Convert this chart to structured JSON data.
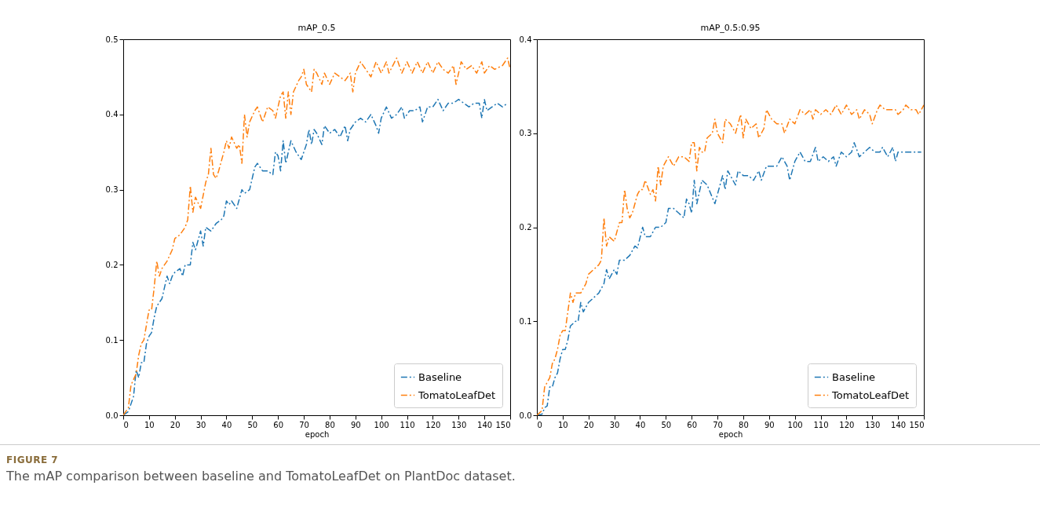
{
  "chart_data": [
    {
      "type": "line",
      "title": "mAP_0.5",
      "xlabel": "epoch",
      "xlim": [
        0,
        150
      ],
      "xticks": [
        0,
        10,
        20,
        30,
        40,
        50,
        60,
        70,
        80,
        90,
        100,
        110,
        120,
        130,
        140,
        150
      ],
      "ylim": [
        0,
        0.5
      ],
      "yticks": [
        {
          "value": 0,
          "label": "0.0"
        },
        0.1,
        0.2,
        0.3,
        0.4,
        0.5
      ],
      "legend": "bottom right",
      "line_style": "dashdot",
      "grid": false,
      "annotations": [
        "FIGURE 7",
        "The mAP comparison between baseline and TomatoLeafDet on PlantDoc dataset."
      ],
      "series": [
        {
          "name": "Baseline",
          "color": "#1f77b4",
          "x": [
            0,
            2,
            3,
            4,
            5,
            6,
            7,
            8,
            9,
            10,
            11,
            12,
            13,
            15,
            17,
            18,
            19,
            20,
            22,
            23,
            24,
            26,
            27,
            28,
            30,
            31,
            32,
            34,
            36,
            38,
            39,
            40,
            41,
            42,
            44,
            46,
            47,
            49,
            51,
            52,
            54,
            56,
            58,
            59,
            60,
            61,
            62,
            63,
            65,
            67,
            69,
            71,
            72,
            73,
            74,
            75,
            77,
            78,
            80,
            82,
            84,
            86,
            87,
            88,
            90,
            92,
            94,
            96,
            98,
            99,
            100,
            102,
            104,
            106,
            108,
            109,
            111,
            113,
            115,
            116,
            118,
            120,
            122,
            124,
            126,
            128,
            130,
            134,
            136,
            138,
            139,
            140,
            141,
            143,
            145,
            147,
            149
          ],
          "values": [
            0,
            0.005,
            0.015,
            0.025,
            0.06,
            0.05,
            0.07,
            0.07,
            0.095,
            0.105,
            0.11,
            0.13,
            0.145,
            0.155,
            0.185,
            0.175,
            0.185,
            0.19,
            0.195,
            0.185,
            0.2,
            0.2,
            0.23,
            0.22,
            0.245,
            0.225,
            0.25,
            0.245,
            0.255,
            0.26,
            0.265,
            0.285,
            0.28,
            0.285,
            0.275,
            0.3,
            0.295,
            0.3,
            0.33,
            0.335,
            0.325,
            0.325,
            0.32,
            0.35,
            0.345,
            0.325,
            0.365,
            0.335,
            0.365,
            0.35,
            0.34,
            0.36,
            0.38,
            0.36,
            0.38,
            0.375,
            0.36,
            0.385,
            0.375,
            0.38,
            0.37,
            0.385,
            0.365,
            0.38,
            0.39,
            0.395,
            0.39,
            0.4,
            0.385,
            0.375,
            0.395,
            0.41,
            0.395,
            0.4,
            0.41,
            0.395,
            0.405,
            0.405,
            0.41,
            0.39,
            0.41,
            0.41,
            0.42,
            0.405,
            0.415,
            0.415,
            0.42,
            0.41,
            0.415,
            0.415,
            0.395,
            0.42,
            0.405,
            0.41,
            0.415,
            0.41,
            0.415
          ]
        },
        {
          "name": "TomatoLeafDet",
          "color": "#ff7f0e",
          "x": [
            0,
            2,
            3,
            5,
            6,
            7,
            8,
            9,
            10,
            11,
            12,
            13,
            14,
            15,
            17,
            19,
            20,
            22,
            24,
            25,
            26,
            27,
            28,
            30,
            32,
            33,
            34,
            35,
            36,
            37,
            39,
            40,
            41,
            42,
            44,
            45,
            46,
            47,
            48,
            49,
            51,
            52,
            54,
            56,
            58,
            59,
            61,
            62,
            63,
            64,
            65,
            66,
            68,
            69,
            70,
            71,
            73,
            74,
            75,
            77,
            78,
            80,
            82,
            84,
            86,
            88,
            89,
            90,
            92,
            94,
            96,
            98,
            100,
            102,
            103,
            106,
            108,
            110,
            112,
            114,
            116,
            118,
            120,
            122,
            124,
            126,
            128,
            129,
            131,
            133,
            135,
            137,
            139,
            140,
            142,
            144,
            147,
            149,
            150
          ],
          "values": [
            0,
            0.01,
            0.04,
            0.055,
            0.08,
            0.095,
            0.1,
            0.12,
            0.14,
            0.14,
            0.17,
            0.205,
            0.185,
            0.195,
            0.205,
            0.22,
            0.235,
            0.24,
            0.25,
            0.26,
            0.305,
            0.27,
            0.29,
            0.275,
            0.31,
            0.32,
            0.355,
            0.32,
            0.315,
            0.325,
            0.35,
            0.365,
            0.355,
            0.37,
            0.355,
            0.36,
            0.335,
            0.4,
            0.37,
            0.39,
            0.405,
            0.41,
            0.39,
            0.41,
            0.405,
            0.395,
            0.425,
            0.43,
            0.395,
            0.43,
            0.4,
            0.43,
            0.445,
            0.45,
            0.46,
            0.44,
            0.43,
            0.46,
            0.455,
            0.44,
            0.455,
            0.44,
            0.455,
            0.45,
            0.445,
            0.455,
            0.43,
            0.455,
            0.47,
            0.46,
            0.45,
            0.47,
            0.455,
            0.47,
            0.455,
            0.475,
            0.455,
            0.47,
            0.455,
            0.47,
            0.455,
            0.47,
            0.455,
            0.47,
            0.46,
            0.455,
            0.465,
            0.44,
            0.47,
            0.46,
            0.465,
            0.455,
            0.47,
            0.455,
            0.465,
            0.46,
            0.465,
            0.475,
            0.46
          ]
        }
      ]
    },
    {
      "type": "line",
      "title": "mAP_0.5:0.95",
      "xlabel": "epoch",
      "xlim": [
        0,
        150
      ],
      "xticks": [
        0,
        10,
        20,
        30,
        40,
        50,
        60,
        70,
        80,
        90,
        100,
        110,
        120,
        130,
        140,
        150
      ],
      "ylim": [
        0,
        0.4
      ],
      "yticks": [
        {
          "value": 0,
          "label": "0.0"
        },
        0.1,
        0.2,
        0.3,
        0.4
      ],
      "legend": "bottom right",
      "line_style": "dashdot",
      "grid": false,
      "series": [
        {
          "name": "Baseline",
          "color": "#1f77b4",
          "x": [
            0,
            2,
            3,
            4,
            5,
            6,
            7,
            8,
            9,
            10,
            11,
            12,
            13,
            15,
            16,
            17,
            18,
            20,
            22,
            24,
            26,
            27,
            28,
            30,
            31,
            32,
            34,
            36,
            38,
            39,
            41,
            42,
            44,
            46,
            48,
            50,
            51,
            53,
            55,
            57,
            58,
            59,
            60,
            61,
            62,
            64,
            66,
            69,
            71,
            72,
            73,
            74,
            75,
            77,
            78,
            80,
            82,
            84,
            86,
            87,
            89,
            91,
            93,
            95,
            97,
            98,
            100,
            102,
            104,
            106,
            108,
            109,
            111,
            113,
            115,
            116,
            118,
            120,
            122,
            123,
            125,
            127,
            129,
            131,
            133,
            134,
            136,
            138,
            139,
            140,
            142,
            144,
            147,
            149
          ],
          "values": [
            0,
            0.001,
            0.008,
            0.01,
            0.03,
            0.03,
            0.04,
            0.045,
            0.06,
            0.07,
            0.07,
            0.08,
            0.095,
            0.1,
            0.1,
            0.12,
            0.11,
            0.12,
            0.125,
            0.13,
            0.14,
            0.155,
            0.145,
            0.155,
            0.15,
            0.165,
            0.165,
            0.17,
            0.18,
            0.178,
            0.2,
            0.19,
            0.19,
            0.2,
            0.2,
            0.205,
            0.22,
            0.22,
            0.215,
            0.21,
            0.23,
            0.225,
            0.215,
            0.25,
            0.225,
            0.25,
            0.245,
            0.225,
            0.245,
            0.255,
            0.24,
            0.26,
            0.255,
            0.245,
            0.26,
            0.255,
            0.255,
            0.25,
            0.26,
            0.25,
            0.265,
            0.265,
            0.265,
            0.275,
            0.265,
            0.25,
            0.27,
            0.28,
            0.27,
            0.27,
            0.285,
            0.27,
            0.275,
            0.27,
            0.275,
            0.265,
            0.28,
            0.275,
            0.28,
            0.29,
            0.275,
            0.28,
            0.285,
            0.28,
            0.28,
            0.285,
            0.275,
            0.285,
            0.27,
            0.28,
            0.28,
            0.28,
            0.28,
            0.28
          ]
        },
        {
          "name": "TomatoLeafDet",
          "color": "#ff7f0e",
          "x": [
            0,
            2,
            3,
            5,
            6,
            7,
            8,
            9,
            10,
            11,
            12,
            13,
            14,
            15,
            17,
            19,
            20,
            22,
            24,
            25,
            26,
            27,
            28,
            30,
            32,
            33,
            34,
            35,
            36,
            37,
            39,
            40,
            41,
            42,
            44,
            45,
            46,
            47,
            48,
            49,
            51,
            53,
            55,
            57,
            59,
            60,
            61,
            62,
            63,
            64,
            65,
            66,
            68,
            69,
            70,
            72,
            73,
            75,
            77,
            78,
            79,
            80,
            81,
            83,
            85,
            86,
            88,
            89,
            91,
            93,
            95,
            96,
            98,
            100,
            102,
            104,
            106,
            107,
            108,
            110,
            112,
            114,
            116,
            118,
            120,
            122,
            124,
            125,
            127,
            129,
            130,
            132,
            133,
            135,
            137,
            139,
            140,
            142,
            143,
            145,
            147,
            148,
            150
          ],
          "values": [
            0,
            0.005,
            0.03,
            0.04,
            0.055,
            0.06,
            0.07,
            0.085,
            0.09,
            0.09,
            0.11,
            0.13,
            0.12,
            0.13,
            0.13,
            0.14,
            0.15,
            0.155,
            0.16,
            0.165,
            0.21,
            0.18,
            0.19,
            0.185,
            0.205,
            0.205,
            0.24,
            0.22,
            0.21,
            0.215,
            0.235,
            0.24,
            0.24,
            0.25,
            0.235,
            0.24,
            0.228,
            0.265,
            0.245,
            0.265,
            0.275,
            0.265,
            0.275,
            0.275,
            0.27,
            0.29,
            0.29,
            0.26,
            0.285,
            0.28,
            0.28,
            0.295,
            0.3,
            0.315,
            0.3,
            0.29,
            0.315,
            0.31,
            0.3,
            0.31,
            0.32,
            0.295,
            0.315,
            0.305,
            0.31,
            0.295,
            0.305,
            0.325,
            0.315,
            0.31,
            0.31,
            0.3,
            0.315,
            0.31,
            0.325,
            0.32,
            0.325,
            0.315,
            0.325,
            0.32,
            0.325,
            0.32,
            0.33,
            0.32,
            0.33,
            0.32,
            0.325,
            0.315,
            0.325,
            0.32,
            0.31,
            0.325,
            0.33,
            0.325,
            0.325,
            0.325,
            0.32,
            0.325,
            0.33,
            0.325,
            0.325,
            0.32,
            0.33
          ]
        }
      ]
    }
  ]
}
